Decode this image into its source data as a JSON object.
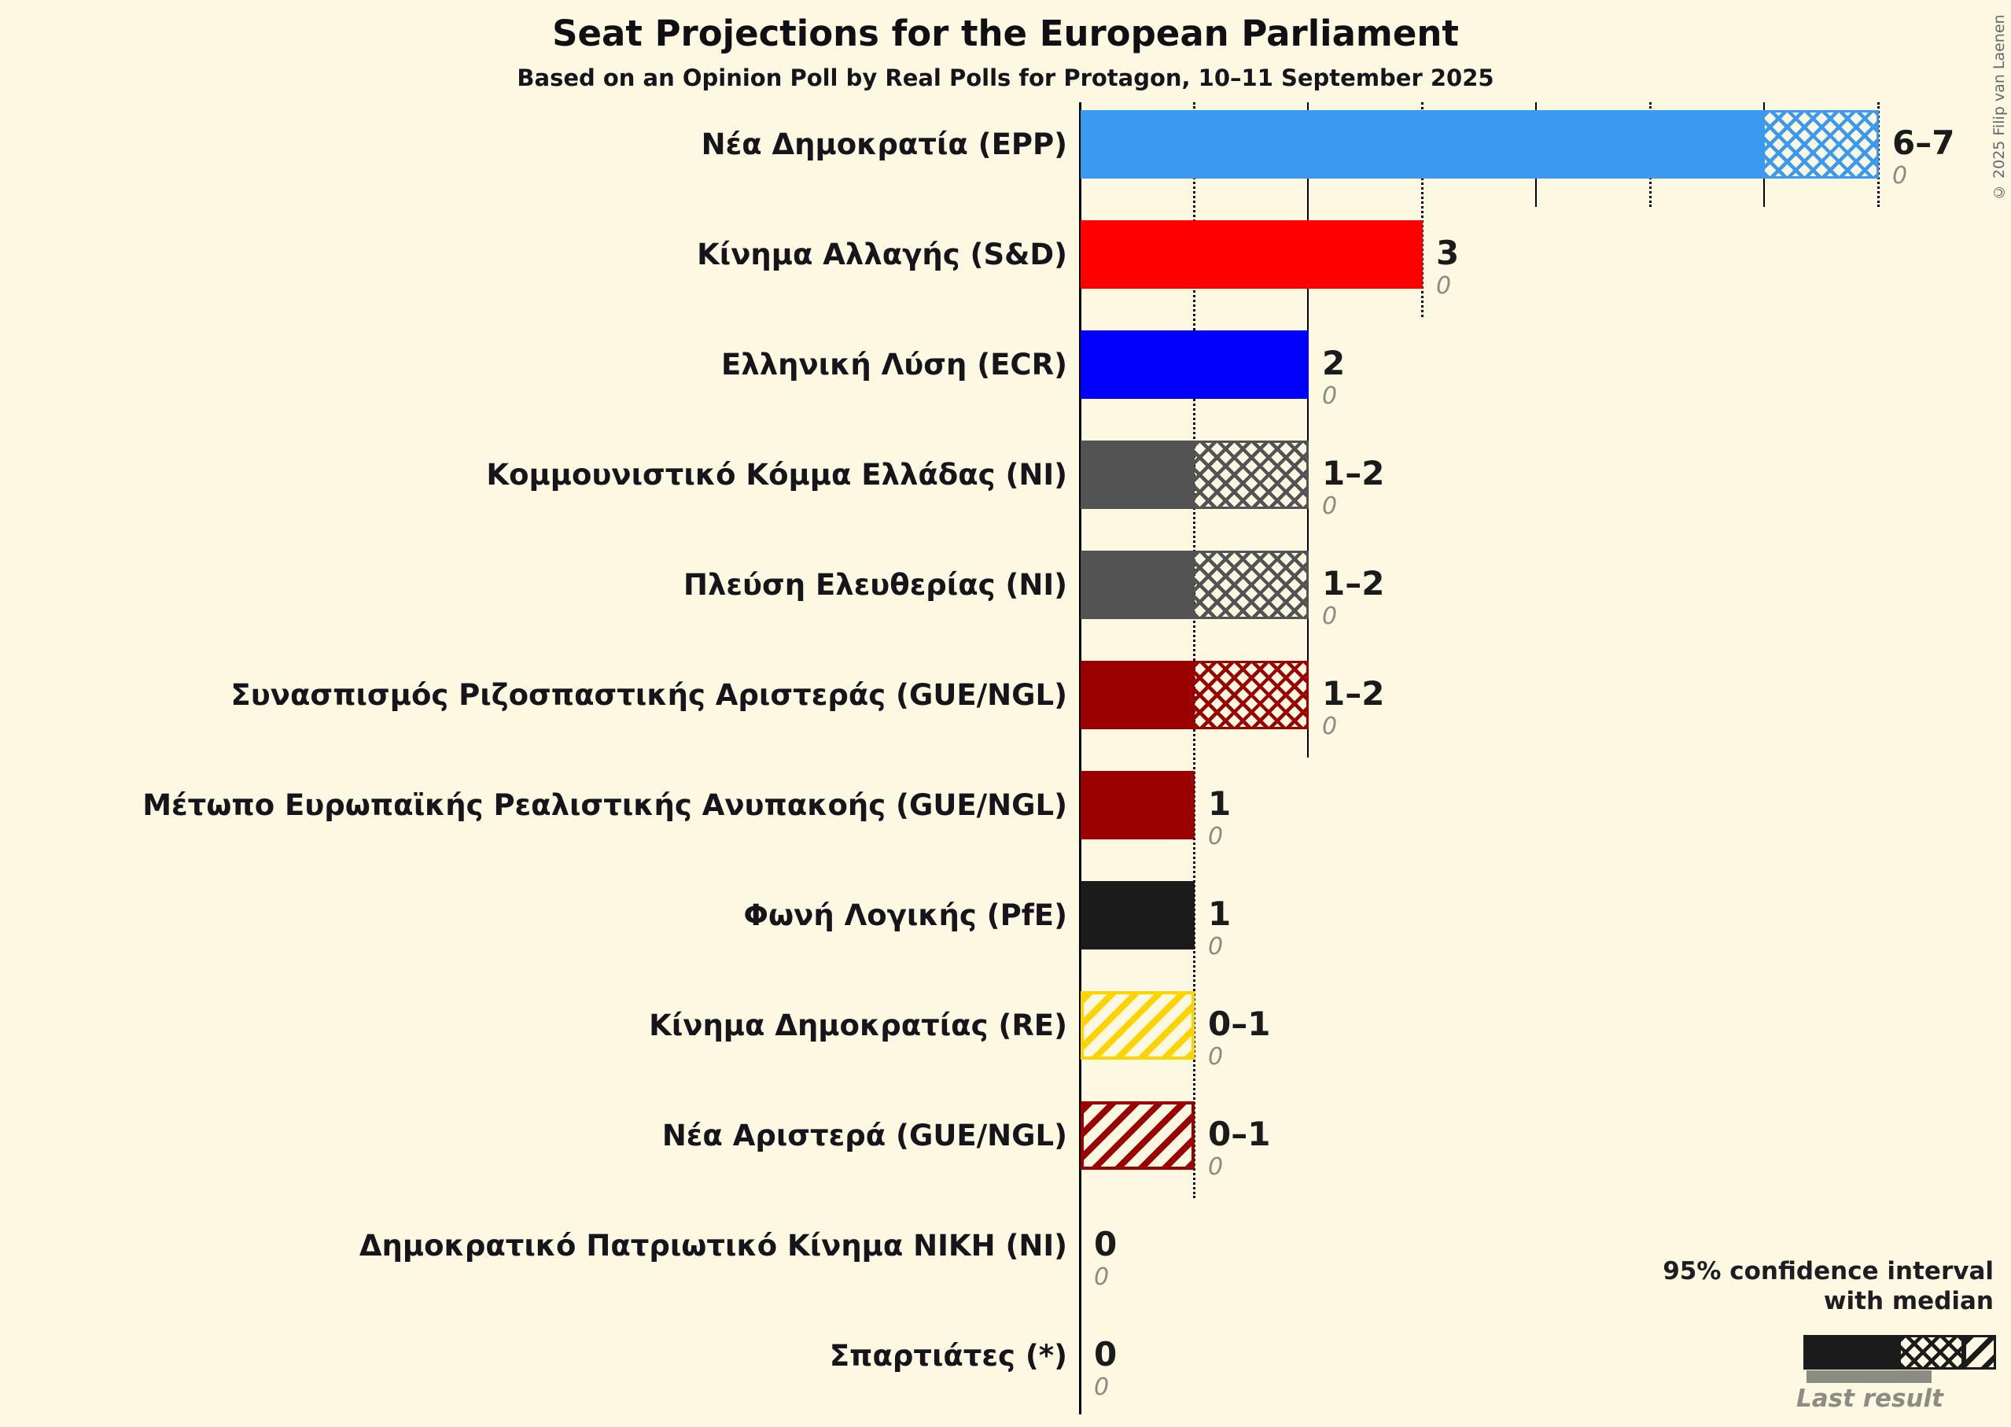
{
  "title": "Seat Projections for the European Parliament",
  "subtitle": "Based on an Opinion Poll by Real Polls for Protagon, 10–11 September 2025",
  "copyright": "© 2025 Filip van Laenen",
  "colors": {
    "background": "#FDF8E2",
    "grid": "#000000",
    "text": "#15151B",
    "muted_text": "#8D8C83",
    "legend_sample": "#1B1B1B"
  },
  "legend": {
    "line1": "95% confidence interval",
    "line2": "with median",
    "last_result": "Last result"
  },
  "chart_data": {
    "type": "bar",
    "orientation": "horizontal",
    "title": "Seat Projections for the European Parliament",
    "subtitle": "Based on an Opinion Poll by Real Polls for Protagon, 10–11 September 2025",
    "unit": "seats",
    "x_axis": {
      "min": 0,
      "max": 7,
      "gridlines_dotted_at": [
        1,
        3,
        5,
        7
      ],
      "gridlines_solid_at": [
        2,
        4,
        6
      ]
    },
    "parties": [
      {
        "label": "Νέα Δημοκρατία (EPP)",
        "color": "#3C99F0",
        "ci_low": 6,
        "ci_high": 7,
        "value_label": "6–7",
        "last_result": "0",
        "hatch": "crosshatch"
      },
      {
        "label": "Κίνημα Αλλαγής (S&D)",
        "color": "#FF0000",
        "ci_low": 3,
        "ci_high": 3,
        "value_label": "3",
        "last_result": "0",
        "hatch": "none"
      },
      {
        "label": "Ελληνική Λύση (ECR)",
        "color": "#0000FB",
        "ci_low": 2,
        "ci_high": 2,
        "value_label": "2",
        "last_result": "0",
        "hatch": "none"
      },
      {
        "label": "Κομμουνιστικό Κόμμα Ελλάδας (NI)",
        "color": "#535353",
        "ci_low": 1,
        "ci_high": 2,
        "value_label": "1–2",
        "last_result": "0",
        "hatch": "crosshatch"
      },
      {
        "label": "Πλεύση Ελευθερίας (NI)",
        "color": "#535353",
        "ci_low": 1,
        "ci_high": 2,
        "value_label": "1–2",
        "last_result": "0",
        "hatch": "crosshatch"
      },
      {
        "label": "Συνασπισμός Ριζοσπαστικής Αριστεράς (GUE/NGL)",
        "color": "#9A0000",
        "ci_low": 1,
        "ci_high": 2,
        "value_label": "1–2",
        "last_result": "0",
        "hatch": "crosshatch"
      },
      {
        "label": "Μέτωπο Ευρωπαϊκής Ρεαλιστικής Ανυπακοής (GUE/NGL)",
        "color": "#9A0000",
        "ci_low": 1,
        "ci_high": 1,
        "value_label": "1",
        "last_result": "0",
        "hatch": "none"
      },
      {
        "label": "Φωνή Λογικής (PfE)",
        "color": "#1B1B1B",
        "ci_low": 1,
        "ci_high": 1,
        "value_label": "1",
        "last_result": "0",
        "hatch": "none"
      },
      {
        "label": "Κίνημα Δημοκρατίας (RE)",
        "color": "#FFD300",
        "ci_low": 0,
        "ci_high": 1,
        "value_label": "0–1",
        "last_result": "0",
        "hatch": "diagonal"
      },
      {
        "label": "Νέα Αριστερά (GUE/NGL)",
        "color": "#9A0000",
        "ci_low": 0,
        "ci_high": 1,
        "value_label": "0–1",
        "last_result": "0",
        "hatch": "diagonal"
      },
      {
        "label": "Δημοκρατικό Πατριωτικό Κίνημα ΝΙΚΗ (NI)",
        "color": "#535353",
        "ci_low": 0,
        "ci_high": 0,
        "value_label": "0",
        "last_result": "0",
        "hatch": "none"
      },
      {
        "label": "Σπαρτιάτες (*)",
        "color": "#1B1B1B",
        "ci_low": 0,
        "ci_high": 0,
        "value_label": "0",
        "last_result": "0",
        "hatch": "none"
      }
    ]
  }
}
